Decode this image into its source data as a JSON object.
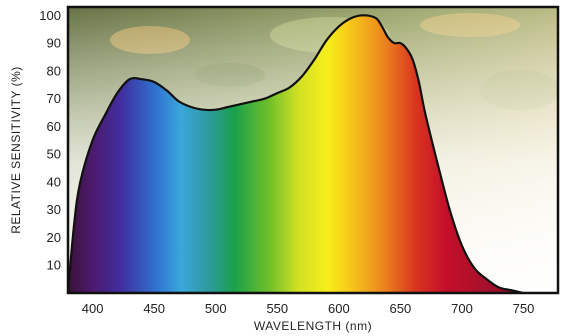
{
  "chart_data": {
    "type": "area",
    "title": "",
    "xlabel": "WAVELENGTH (nm)",
    "ylabel": "RELATIVE  SENSITIVITY (%)",
    "xlim": [
      380,
      778
    ],
    "ylim": [
      0,
      103
    ],
    "x_ticks": [
      400,
      450,
      500,
      550,
      600,
      650,
      700,
      750
    ],
    "y_ticks": [
      10,
      20,
      30,
      40,
      50,
      60,
      70,
      80,
      90,
      100
    ],
    "grid": false,
    "legend": "none",
    "series": [
      {
        "x": [
          380,
          385,
          390,
          400,
          410,
          420,
          430,
          440,
          450,
          460,
          470,
          480,
          490,
          500,
          510,
          520,
          530,
          540,
          550,
          560,
          570,
          580,
          590,
          600,
          610,
          620,
          630,
          635,
          640,
          645,
          650,
          655,
          660,
          665,
          670,
          680,
          690,
          700,
          710,
          720,
          730,
          740,
          750
        ],
        "y": [
          0,
          25,
          40,
          55,
          64,
          72,
          77,
          77,
          76,
          73,
          69,
          67,
          66,
          66,
          67,
          68,
          69,
          70,
          72,
          74,
          78,
          84,
          91,
          96,
          99,
          100,
          99,
          96,
          92,
          90,
          90,
          88,
          84,
          76,
          65,
          47,
          30,
          17,
          9,
          5,
          2,
          1,
          0
        ]
      }
    ]
  }
}
